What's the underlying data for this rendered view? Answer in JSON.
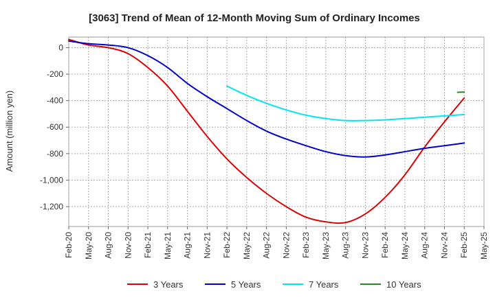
{
  "chart_data": {
    "type": "line",
    "title": "[3063]  Trend of Mean of 12-Month Moving Sum of Ordinary Incomes",
    "xlabel": "",
    "ylabel": "Amount (million yen)",
    "ylim": [
      -1350,
      80
    ],
    "y_ticks": [
      0,
      -200,
      -400,
      -600,
      -800,
      -1000,
      -1200
    ],
    "y_tick_labels": [
      "0",
      "-200",
      "-400",
      "-600",
      "-800",
      "-1,000",
      "-1,200"
    ],
    "x_ticks": [
      "Feb-20",
      "May-20",
      "Aug-20",
      "Nov-20",
      "Feb-21",
      "May-21",
      "Aug-21",
      "Nov-21",
      "Feb-22",
      "May-22",
      "Aug-22",
      "Nov-22",
      "Feb-23",
      "May-23",
      "Aug-23",
      "Nov-23",
      "Feb-24",
      "May-24",
      "Aug-24",
      "Nov-24",
      "Feb-25",
      "May-25"
    ],
    "grid": true,
    "series": [
      {
        "name": "3 Years",
        "color": "#dd0000",
        "x": [
          0,
          3,
          6,
          9,
          12,
          15,
          18,
          21,
          24,
          27,
          30,
          33,
          36,
          39,
          42,
          45,
          48,
          51,
          54,
          57,
          60
        ],
        "values": [
          62,
          20,
          0,
          -45,
          -150,
          -290,
          -480,
          -670,
          -840,
          -980,
          -1100,
          -1200,
          -1280,
          -1315,
          -1320,
          -1255,
          -1130,
          -960,
          -750,
          -560,
          -380
        ]
      },
      {
        "name": "5 Years",
        "color": "#0000cc",
        "x": [
          0,
          3,
          6,
          9,
          12,
          15,
          18,
          21,
          24,
          27,
          30,
          33,
          36,
          39,
          42,
          45,
          48,
          51,
          54,
          57,
          60
        ],
        "values": [
          50,
          30,
          20,
          0,
          -60,
          -150,
          -270,
          -370,
          -460,
          -550,
          -630,
          -690,
          -740,
          -785,
          -815,
          -825,
          -810,
          -785,
          -760,
          -740,
          -720
        ]
      },
      {
        "name": "7 Years",
        "color": "#00e5ee",
        "x": [
          24,
          27,
          30,
          33,
          36,
          39,
          42,
          45,
          48,
          51,
          54,
          57,
          60
        ],
        "values": [
          -290,
          -360,
          -420,
          -470,
          -510,
          -535,
          -550,
          -550,
          -545,
          -535,
          -525,
          -515,
          -505
        ]
      },
      {
        "name": "10 Years",
        "color": "#228b22",
        "x": [
          59,
          60
        ],
        "values": [
          -337,
          -335
        ]
      }
    ],
    "legend_position": "bottom"
  }
}
